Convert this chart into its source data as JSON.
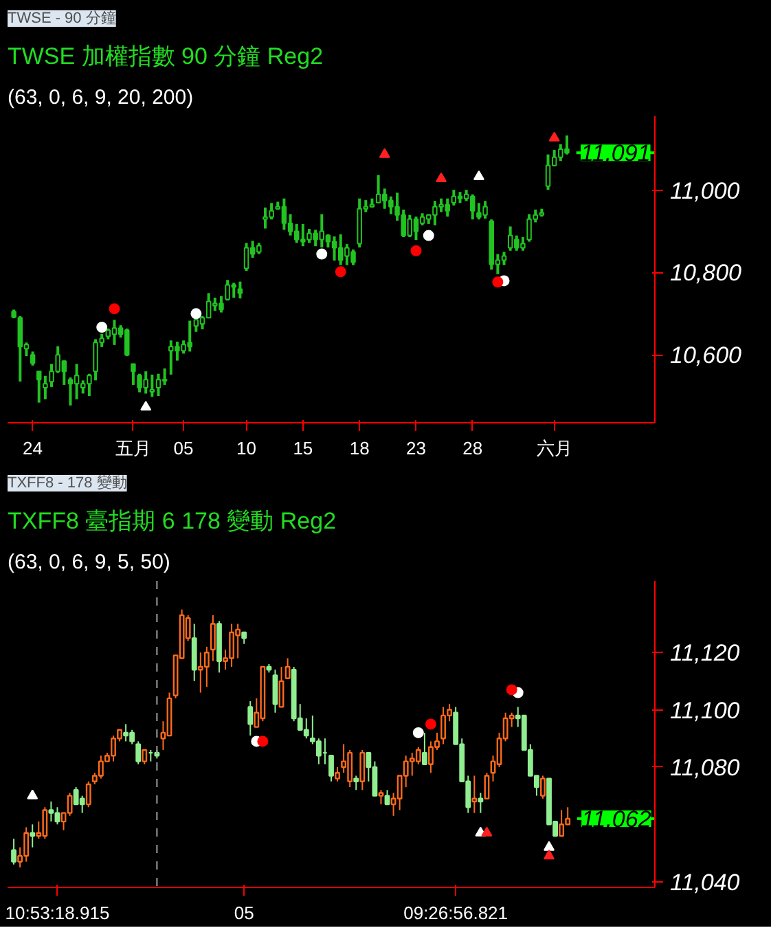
{
  "chart_data": [
    {
      "type": "candlestick",
      "title": "TWSE  加權指數  90 分鐘  Reg2",
      "subtitle": "(63,  0,  6,  9,  20,  200)",
      "annotations": [
        "TWSE - 90 分鐘"
      ],
      "color": "#22c322",
      "categories": [
        null,
        null,
        null,
        "24",
        null,
        null,
        null,
        null,
        null,
        null,
        null,
        null,
        null,
        null,
        null,
        null,
        null,
        null,
        null,
        "五月",
        null,
        null,
        null,
        null,
        null,
        null,
        null,
        "05",
        null,
        null,
        null,
        null,
        null,
        null,
        null,
        null,
        null,
        "10",
        null,
        null,
        null,
        null,
        null,
        null,
        null,
        null,
        "15",
        null,
        null,
        null,
        null,
        null,
        null,
        null,
        null,
        "18",
        null,
        null,
        null,
        null,
        null,
        null,
        null,
        null,
        "23",
        null,
        null,
        null,
        null,
        null,
        null,
        null,
        null,
        "28",
        null,
        null,
        null,
        null,
        null,
        null,
        null,
        null,
        null,
        null,
        null,
        null,
        "六月",
        null,
        null
      ],
      "ohlc": [
        [
          10705,
          10710,
          10689,
          10692
        ],
        [
          10690,
          10694,
          10535,
          10620
        ],
        [
          10615,
          10630,
          10597,
          10625
        ],
        [
          10600,
          10608,
          10574,
          10580
        ],
        [
          10560,
          10560,
          10484,
          10540
        ],
        [
          10520,
          10549,
          10492,
          10530
        ],
        [
          10535,
          10578,
          10522,
          10560
        ],
        [
          10560,
          10621,
          10556,
          10600
        ],
        [
          10585,
          10586,
          10527,
          10560
        ],
        [
          10540,
          10545,
          10477,
          10530
        ],
        [
          10530,
          10578,
          10492,
          10550
        ],
        [
          10520,
          10538,
          10506,
          10530
        ],
        [
          10530,
          10554,
          10500,
          10550
        ],
        [
          10560,
          10638,
          10538,
          10630
        ],
        [
          10630,
          10651,
          10619,
          10640
        ],
        [
          10645,
          10664,
          10638,
          10660
        ],
        [
          10650,
          10685,
          10624,
          10665
        ],
        [
          10665,
          10672,
          10642,
          10650
        ],
        [
          10660,
          10664,
          10597,
          10600
        ],
        [
          10578,
          10578,
          10527,
          10560
        ],
        [
          10550,
          10554,
          10509,
          10520
        ],
        [
          10520,
          10560,
          10506,
          10540
        ],
        [
          10510,
          10552,
          10498,
          10515
        ],
        [
          10520,
          10554,
          10500,
          10540
        ],
        [
          10540,
          10567,
          10527,
          10537
        ],
        [
          10610,
          10635,
          10552,
          10620
        ],
        [
          10620,
          10632,
          10586,
          10610
        ],
        [
          10610,
          10635,
          10603,
          10625
        ],
        [
          10630,
          10683,
          10608,
          10620
        ],
        [
          10670,
          10689,
          10656,
          10685
        ],
        [
          10675,
          10694,
          10662,
          10690
        ],
        [
          10690,
          10750,
          10689,
          10730
        ],
        [
          10720,
          10739,
          10707,
          10725
        ],
        [
          10725,
          10743,
          10703,
          10710
        ],
        [
          10735,
          10782,
          10732,
          10770
        ],
        [
          10770,
          10775,
          10739,
          10765
        ],
        [
          10760,
          10778,
          10737,
          10750
        ],
        [
          10810,
          10872,
          10804,
          10860
        ],
        [
          10860,
          10877,
          10836,
          10845
        ],
        [
          10850,
          10872,
          10845,
          10865
        ],
        [
          10930,
          10958,
          10907,
          10935
        ],
        [
          10935,
          10969,
          10929,
          10950
        ],
        [
          10955,
          10972,
          10953,
          10960
        ],
        [
          10960,
          10980,
          10904,
          10920
        ],
        [
          10920,
          10942,
          10890,
          10900
        ],
        [
          10900,
          10918,
          10872,
          10880
        ],
        [
          10880,
          10918,
          10864,
          10875
        ],
        [
          10880,
          10906,
          10872,
          10895
        ],
        [
          10895,
          10904,
          10864,
          10880
        ],
        [
          10880,
          10942,
          10861,
          10900
        ],
        [
          10890,
          10893,
          10861,
          10875
        ],
        [
          10875,
          10888,
          10829,
          10860
        ],
        [
          10860,
          10893,
          10818,
          10830
        ],
        [
          10840,
          10869,
          10818,
          10860
        ],
        [
          10850,
          10856,
          10818,
          10825
        ],
        [
          10870,
          10980,
          10861,
          10955
        ],
        [
          10955,
          10976,
          10947,
          10960
        ],
        [
          10960,
          10980,
          10958,
          10965
        ],
        [
          10970,
          11037,
          10969,
          10990
        ],
        [
          10990,
          11004,
          10955,
          10975
        ],
        [
          10975,
          10985,
          10942,
          10960
        ],
        [
          10960,
          10994,
          10926,
          10940
        ],
        [
          10940,
          10953,
          10886,
          10890
        ],
        [
          10890,
          10940,
          10886,
          10930
        ],
        [
          10930,
          10936,
          10879,
          10900
        ],
        [
          10920,
          10944,
          10915,
          10935
        ],
        [
          10930,
          10942,
          10918,
          10940
        ],
        [
          10940,
          10974,
          10915,
          10960
        ],
        [
          10960,
          10980,
          10947,
          10965
        ],
        [
          10965,
          10980,
          10936,
          10950
        ],
        [
          10970,
          11001,
          10963,
          10985
        ],
        [
          10985,
          10996,
          10969,
          10980
        ],
        [
          10980,
          11001,
          10974,
          10990
        ],
        [
          10985,
          10990,
          10929,
          10950
        ],
        [
          10945,
          10969,
          10929,
          10935
        ],
        [
          10940,
          10974,
          10931,
          10960
        ],
        [
          10925,
          10929,
          10807,
          10820
        ],
        [
          10820,
          10845,
          10796,
          10830
        ],
        [
          10830,
          10850,
          10818,
          10840
        ],
        [
          10860,
          10912,
          10853,
          10890
        ],
        [
          10880,
          10890,
          10853,
          10860
        ],
        [
          10860,
          10886,
          10853,
          10870
        ],
        [
          10880,
          10942,
          10875,
          10930
        ],
        [
          10930,
          10953,
          10922,
          10940
        ],
        [
          10940,
          10955,
          10936,
          10945
        ],
        [
          11010,
          11087,
          11001,
          11060
        ],
        [
          11060,
          11098,
          11058,
          11080
        ],
        [
          11080,
          11112,
          11071,
          11100
        ],
        [
          11100,
          11133,
          11087,
          11091
        ]
      ],
      "series": [
        {
          "type": "scatter",
          "color": "#ffffff",
          "marker": "circle",
          "values": [
            null,
            null,
            null,
            null,
            null,
            null,
            null,
            null,
            null,
            null,
            null,
            null,
            null,
            null,
            10667,
            null,
            null,
            null,
            null,
            null,
            null,
            null,
            null,
            null,
            null,
            null,
            null,
            null,
            null,
            10700,
            null,
            null,
            null,
            null,
            null,
            null,
            null,
            null,
            null,
            null,
            null,
            null,
            null,
            null,
            null,
            null,
            null,
            null,
            null,
            10845,
            null,
            null,
            null,
            null,
            null,
            null,
            null,
            null,
            null,
            null,
            null,
            null,
            null,
            null,
            null,
            null,
            10890,
            null,
            null,
            null,
            null,
            null,
            null,
            null,
            null,
            null,
            null,
            null,
            10780,
            null,
            null,
            null,
            null,
            null,
            null,
            null,
            null,
            null,
            null
          ]
        },
        {
          "type": "scatter",
          "color": "#ff0000",
          "marker": "circle",
          "values": [
            null,
            null,
            null,
            null,
            null,
            null,
            null,
            null,
            null,
            null,
            null,
            null,
            null,
            null,
            null,
            null,
            10712,
            null,
            null,
            null,
            null,
            null,
            null,
            null,
            null,
            null,
            null,
            null,
            null,
            null,
            null,
            null,
            null,
            null,
            null,
            null,
            null,
            null,
            null,
            null,
            null,
            null,
            null,
            null,
            null,
            null,
            null,
            null,
            null,
            null,
            null,
            null,
            10802,
            null,
            null,
            null,
            null,
            null,
            null,
            null,
            null,
            null,
            null,
            null,
            10853,
            null,
            null,
            null,
            null,
            null,
            null,
            null,
            null,
            null,
            null,
            null,
            null,
            10777,
            null,
            null,
            null,
            null,
            null,
            null,
            null,
            null,
            null,
            null,
            null
          ]
        },
        {
          "type": "scatter",
          "color": "#ff2020",
          "marker": "triangle",
          "values": [
            null,
            null,
            null,
            null,
            null,
            null,
            null,
            null,
            null,
            null,
            null,
            null,
            null,
            null,
            null,
            null,
            null,
            null,
            null,
            null,
            null,
            null,
            null,
            null,
            null,
            null,
            null,
            null,
            null,
            null,
            null,
            null,
            null,
            null,
            null,
            null,
            null,
            null,
            null,
            null,
            null,
            null,
            null,
            null,
            null,
            null,
            null,
            null,
            null,
            null,
            null,
            null,
            null,
            null,
            null,
            null,
            null,
            null,
            null,
            11087,
            null,
            null,
            null,
            null,
            null,
            null,
            null,
            null,
            11028,
            null,
            null,
            null,
            null,
            null,
            null,
            null,
            null,
            null,
            null,
            null,
            null,
            null,
            null,
            null,
            null,
            null,
            11127,
            null,
            null
          ]
        },
        {
          "type": "scatter",
          "color": "#ffffff",
          "marker": "triangle",
          "values": [
            null,
            null,
            null,
            null,
            null,
            null,
            null,
            null,
            null,
            null,
            null,
            null,
            null,
            null,
            null,
            null,
            null,
            null,
            null,
            null,
            null,
            null,
            null,
            null,
            null,
            null,
            null,
            null,
            null,
            null,
            null,
            null,
            null,
            null,
            null,
            null,
            null,
            null,
            null,
            null,
            null,
            null,
            null,
            null,
            null,
            null,
            null,
            null,
            null,
            null,
            null,
            null,
            null,
            null,
            null,
            null,
            null,
            null,
            null,
            null,
            null,
            null,
            null,
            null,
            null,
            null,
            null,
            null,
            null,
            null,
            null,
            null,
            null,
            null,
            11033,
            null,
            null,
            null,
            null,
            null,
            null,
            null,
            null,
            null,
            null,
            null,
            null,
            null,
            null
          ]
        },
        {
          "type": "scatter",
          "color": "#ffffff",
          "marker": "triangle",
          "values": [
            null,
            null,
            null,
            null,
            null,
            null,
            null,
            null,
            null,
            null,
            null,
            null,
            null,
            null,
            null,
            null,
            null,
            null,
            null,
            null,
            null,
            10473,
            null,
            null,
            null,
            null,
            null,
            null,
            null,
            null,
            null,
            null,
            null,
            null,
            null,
            null,
            null,
            null,
            null,
            null,
            null,
            null,
            null,
            null,
            null,
            null,
            null,
            null,
            null,
            null,
            null,
            null,
            null,
            null,
            null,
            null,
            null,
            null,
            null,
            null,
            null,
            null,
            null,
            null,
            null,
            null,
            null,
            null,
            null,
            null,
            null,
            null,
            null,
            null,
            null,
            null,
            null,
            null,
            null,
            null,
            null,
            null,
            null,
            null,
            null,
            null,
            null,
            null,
            null
          ]
        }
      ],
      "ylim": [
        10435,
        11180
      ],
      "yticks": [
        {
          "value": 10600,
          "label": "10,600"
        },
        {
          "value": 10800,
          "label": "10,800"
        },
        {
          "value": 11000,
          "label": "11,000"
        }
      ],
      "ref_lines": [
        {
          "axis": "y",
          "value": 11091,
          "label": "11,091",
          "color": "#00ff00"
        }
      ]
    },
    {
      "type": "candlestick",
      "title": "TXFF8  臺指期 6  178 變動  Reg2",
      "subtitle": "(63,  0,  6,  9,  5,  50)",
      "annotations": [
        "TXFF8 - 178 變動"
      ],
      "colors": [
        "#90ee90",
        "#ff6a1a",
        "#ff6a1a",
        "#90ee90",
        "#ff6a1a",
        "#ff6a1a",
        "#90ee90",
        "#90ee90",
        "#ff6a1a",
        "#ff6a1a",
        "#90ee90",
        "#90ee90",
        "#ff6a1a",
        "#ff6a1a",
        "#ff6a1a",
        "#ff6a1a",
        "#ff6a1a",
        "#ff6a1a",
        "#90ee90",
        "#90ee90",
        "#90ee90",
        "#ff6a1a",
        "#90ee90",
        "#90ee90",
        "#ff6a1a",
        "#ff6a1a",
        "#ff6a1a",
        "#ff6a1a",
        "#ff6a1a",
        "#90ee90",
        "#ff6a1a",
        "#ff6a1a",
        "#ff6a1a",
        "#90ee90",
        "#ff6a1a",
        "#ff6a1a",
        "#ff6a1a",
        "#90ee90",
        "#90ee90",
        "#ff6a1a",
        "#ff6a1a",
        "#90ee90",
        "#90ee90",
        "#ff6a1a",
        "#ff6a1a",
        "#90ee90",
        "#90ee90",
        "#90ee90",
        "#90ee90",
        "#90ee90",
        "#90ee90",
        "#90ee90",
        "#ff6a1a",
        "#ff6a1a",
        "#ff6a1a",
        "#90ee90",
        "#ff6a1a",
        "#90ee90",
        "#90ee90",
        "#ff6a1a",
        "#90ee90",
        "#ff6a1a",
        "#ff6a1a",
        "#ff6a1a",
        "#ff6a1a",
        "#ff6a1a",
        "#90ee90",
        "#ff6a1a",
        "#ff6a1a",
        "#ff6a1a",
        "#ff6a1a",
        "#90ee90",
        "#90ee90",
        "#90ee90",
        "#ff6a1a",
        "#90ee90",
        "#ff6a1a",
        "#ff6a1a",
        "#ff6a1a",
        "#ff6a1a",
        "#ff6a1a",
        "#90ee90",
        "#90ee90",
        "#90ee90",
        "#90ee90",
        "#ff6a1a",
        "#90ee90",
        "#90ee90",
        "#ff6a1a",
        "#ff6a1a"
      ],
      "categories": [
        null,
        null,
        null,
        null,
        null,
        null,
        null,
        "10:53:18.915",
        null,
        null,
        null,
        null,
        null,
        null,
        null,
        null,
        null,
        null,
        null,
        null,
        null,
        null,
        null,
        null,
        null,
        null,
        null,
        null,
        null,
        null,
        null,
        null,
        null,
        null,
        null,
        null,
        null,
        "05",
        null,
        null,
        null,
        null,
        null,
        null,
        null,
        null,
        null,
        null,
        null,
        null,
        null,
        null,
        null,
        null,
        null,
        null,
        null,
        null,
        null,
        null,
        null,
        null,
        null,
        null,
        null,
        null,
        null,
        null,
        null,
        null,
        null,
        "09:26:56.821",
        null,
        null,
        null,
        null,
        null,
        null,
        null,
        null,
        null,
        null,
        null,
        null,
        null,
        null,
        null,
        null,
        null,
        null
      ],
      "ohlc": [
        [
          11051,
          11055,
          11046,
          11047
        ],
        [
          11047,
          11052,
          11045,
          11049
        ],
        [
          11049,
          11059,
          11047,
          11057
        ],
        [
          11057,
          11060,
          11052,
          11056
        ],
        [
          11056,
          11061,
          11055,
          11057
        ],
        [
          11056,
          11066,
          11055,
          11065
        ],
        [
          11065,
          11068,
          11061,
          11064
        ],
        [
          11064,
          11066,
          11060,
          11061
        ],
        [
          11061,
          11064,
          11058,
          11064
        ],
        [
          11064,
          11071,
          11063,
          11070
        ],
        [
          11072,
          11073,
          11067,
          11067
        ],
        [
          11069,
          11070,
          11064,
          11067
        ],
        [
          11067,
          11075,
          11066,
          11074
        ],
        [
          11075,
          11078,
          11074,
          11077
        ],
        [
          11077,
          11084,
          11076,
          11082
        ],
        [
          11082,
          11085,
          11082,
          11084
        ],
        [
          11084,
          11091,
          11082,
          11090
        ],
        [
          11090,
          11093,
          11089,
          11093
        ],
        [
          11092,
          11095,
          11089,
          11091
        ],
        [
          11092,
          11093,
          11088,
          11089
        ],
        [
          11088,
          11089,
          11081,
          11082
        ],
        [
          11082,
          11086,
          11081,
          11086
        ],
        [
          11085,
          11086,
          11082,
          11085
        ],
        [
          11085,
          11086,
          11083,
          11084
        ],
        [
          11090,
          11096,
          11086,
          11092
        ],
        [
          11091,
          11106,
          11091,
          11104
        ],
        [
          11105,
          11119,
          11104,
          11119
        ],
        [
          11118,
          11135,
          11118,
          11133
        ],
        [
          11125,
          11133,
          11124,
          11132
        ],
        [
          11125,
          11130,
          11110,
          11114
        ],
        [
          11114,
          11120,
          11106,
          11115
        ],
        [
          11115,
          11122,
          11108,
          11120
        ],
        [
          11121,
          11133,
          11117,
          11130
        ],
        [
          11130,
          11131,
          11113,
          11117
        ],
        [
          11117,
          11121,
          11114,
          11118
        ],
        [
          11118,
          11130,
          11115,
          11127
        ],
        [
          11126,
          11130,
          11118,
          11128
        ],
        [
          11127,
          11127,
          11123,
          11125
        ],
        [
          11101,
          11103,
          11091,
          11095
        ],
        [
          11094,
          11104,
          11094,
          11099
        ],
        [
          11097,
          11115,
          11096,
          11115
        ],
        [
          11115,
          11116,
          11113,
          11114
        ],
        [
          11112,
          11114,
          11099,
          11102
        ],
        [
          11101,
          11115,
          11101,
          11110
        ],
        [
          11111,
          11118,
          11111,
          11115
        ],
        [
          11114,
          11115,
          11096,
          11097
        ],
        [
          11097,
          11102,
          11093,
          11093
        ],
        [
          11093,
          11097,
          11090,
          11091
        ],
        [
          11090,
          11098,
          11088,
          11089
        ],
        [
          11089,
          11090,
          11081,
          11084
        ],
        [
          11085,
          11090,
          11081,
          11085
        ],
        [
          11084,
          11084,
          11075,
          11077
        ],
        [
          11076,
          11080,
          11075,
          11078
        ],
        [
          11080,
          11088,
          11078,
          11082
        ],
        [
          11075,
          11086,
          11073,
          11085
        ],
        [
          11076,
          11077,
          11072,
          11075
        ],
        [
          11075,
          11086,
          11072,
          11085
        ],
        [
          11085,
          11085,
          11075,
          11080
        ],
        [
          11080,
          11082,
          11070,
          11070
        ],
        [
          11070,
          11072,
          11067,
          11071
        ],
        [
          11070,
          11072,
          11067,
          11067
        ],
        [
          11067,
          11071,
          11063,
          11069
        ],
        [
          11069,
          11077,
          11065,
          11077
        ],
        [
          11077,
          11084,
          11073,
          11082
        ],
        [
          11082,
          11085,
          11077,
          11083
        ],
        [
          11082,
          11087,
          11081,
          11086
        ],
        [
          11085,
          11092,
          11081,
          11081
        ],
        [
          11081,
          11089,
          11078,
          11087
        ],
        [
          11087,
          11092,
          11086,
          11089
        ],
        [
          11090,
          11101,
          11088,
          11098
        ],
        [
          11098,
          11102,
          11096,
          11100
        ],
        [
          11099,
          11101,
          11088,
          11088
        ],
        [
          11088,
          11090,
          11075,
          11075
        ],
        [
          11075,
          11077,
          11064,
          11066
        ],
        [
          11068,
          11077,
          11064,
          11069
        ],
        [
          11069,
          11071,
          11064,
          11068
        ],
        [
          11069,
          11078,
          11069,
          11077
        ],
        [
          11078,
          11084,
          11075,
          11082
        ],
        [
          11081,
          11092,
          11080,
          11090
        ],
        [
          11090,
          11099,
          11089,
          11097
        ],
        [
          11097,
          11099,
          11094,
          11098
        ],
        [
          11098,
          11101,
          11094,
          11097
        ],
        [
          11098,
          11098,
          11086,
          11086
        ],
        [
          11086,
          11088,
          11077,
          11077
        ],
        [
          11077,
          11077,
          11070,
          11073
        ],
        [
          11070,
          11077,
          11069,
          11076
        ],
        [
          11076,
          11076,
          11060,
          11060
        ],
        [
          11061,
          11061,
          11056,
          11056
        ],
        [
          11056,
          11065,
          11056,
          11060
        ],
        [
          11060,
          11066,
          11060,
          11062
        ]
      ],
      "series": [
        {
          "type": "scatter",
          "color": "#ffffff",
          "marker": "circle",
          "values": [
            null,
            null,
            null,
            null,
            null,
            null,
            null,
            null,
            null,
            null,
            null,
            null,
            null,
            null,
            null,
            null,
            null,
            null,
            null,
            null,
            null,
            null,
            null,
            null,
            null,
            null,
            null,
            null,
            null,
            null,
            null,
            null,
            null,
            null,
            null,
            null,
            null,
            null,
            null,
            11089,
            null,
            null,
            null,
            null,
            null,
            null,
            null,
            null,
            null,
            null,
            null,
            null,
            null,
            null,
            null,
            null,
            null,
            null,
            null,
            null,
            null,
            null,
            null,
            null,
            null,
            11092,
            null,
            null,
            null,
            null,
            null,
            null,
            null,
            null,
            null,
            null,
            null,
            null,
            null,
            null,
            null,
            11106,
            null,
            null,
            null,
            null,
            null,
            null,
            null,
            null
          ]
        },
        {
          "type": "scatter",
          "color": "#ff0000",
          "marker": "circle",
          "values": [
            null,
            null,
            null,
            null,
            null,
            null,
            null,
            null,
            null,
            null,
            null,
            null,
            null,
            null,
            null,
            null,
            null,
            null,
            null,
            null,
            null,
            null,
            null,
            null,
            null,
            null,
            null,
            null,
            null,
            null,
            null,
            null,
            null,
            null,
            null,
            null,
            null,
            null,
            null,
            null,
            11089,
            null,
            null,
            null,
            null,
            null,
            null,
            null,
            null,
            null,
            null,
            null,
            null,
            null,
            null,
            null,
            null,
            null,
            null,
            null,
            null,
            null,
            null,
            null,
            null,
            null,
            null,
            11095,
            null,
            null,
            null,
            null,
            null,
            null,
            null,
            null,
            null,
            null,
            null,
            null,
            11107,
            null,
            null,
            null,
            null,
            null,
            null,
            null,
            null,
            null
          ]
        },
        {
          "type": "scatter",
          "color": "#ffffff",
          "marker": "triangle",
          "values": [
            null,
            null,
            null,
            11070,
            null,
            null,
            null,
            null,
            null,
            null,
            null,
            null,
            null,
            null,
            null,
            null,
            null,
            null,
            null,
            null,
            null,
            null,
            null,
            null,
            null,
            null,
            null,
            null,
            null,
            null,
            null,
            null,
            null,
            null,
            null,
            null,
            null,
            null,
            null,
            null,
            null,
            null,
            null,
            null,
            null,
            null,
            null,
            null,
            null,
            null,
            null,
            null,
            null,
            null,
            null,
            null,
            null,
            null,
            null,
            null,
            null,
            null,
            null,
            null,
            null,
            null,
            null,
            null,
            null,
            null,
            null,
            null,
            null,
            null,
            null,
            null,
            null,
            null,
            null,
            null,
            null,
            null,
            null,
            null,
            null,
            null,
            null,
            null,
            null,
            null
          ]
        },
        {
          "type": "scatter",
          "color": "#ffffff",
          "marker": "triangle",
          "values": [
            null,
            null,
            null,
            null,
            null,
            null,
            null,
            null,
            null,
            null,
            null,
            null,
            null,
            null,
            null,
            null,
            null,
            null,
            null,
            null,
            null,
            null,
            null,
            null,
            null,
            null,
            null,
            null,
            null,
            null,
            null,
            null,
            null,
            null,
            null,
            null,
            null,
            null,
            null,
            null,
            null,
            null,
            null,
            null,
            null,
            null,
            null,
            null,
            null,
            null,
            null,
            null,
            null,
            null,
            null,
            null,
            null,
            null,
            null,
            null,
            null,
            null,
            null,
            null,
            null,
            null,
            null,
            null,
            null,
            null,
            null,
            null,
            null,
            null,
            null,
            11057,
            null,
            null,
            null,
            null,
            null,
            null,
            null,
            null,
            null,
            null,
            11052,
            null,
            null,
            null
          ]
        },
        {
          "type": "scatter",
          "color": "#ff2020",
          "marker": "triangle",
          "values": [
            null,
            null,
            null,
            null,
            null,
            null,
            null,
            null,
            null,
            null,
            null,
            null,
            null,
            null,
            null,
            null,
            null,
            null,
            null,
            null,
            null,
            null,
            null,
            null,
            null,
            null,
            null,
            null,
            null,
            null,
            null,
            null,
            null,
            null,
            null,
            null,
            null,
            null,
            null,
            null,
            null,
            null,
            null,
            null,
            null,
            null,
            null,
            null,
            null,
            null,
            null,
            null,
            null,
            null,
            null,
            null,
            null,
            null,
            null,
            null,
            null,
            null,
            null,
            null,
            null,
            null,
            null,
            null,
            null,
            null,
            null,
            null,
            null,
            null,
            null,
            null,
            11057,
            null,
            null,
            null,
            null,
            null,
            null,
            null,
            null,
            null,
            11049,
            null,
            null,
            null
          ]
        }
      ],
      "ylim": [
        11038,
        11145
      ],
      "yticks": [
        {
          "value": 11040,
          "label": "11,040"
        },
        {
          "value": 11080,
          "label": "11,080"
        },
        {
          "value": 11100,
          "label": "11,100"
        },
        {
          "value": 11120,
          "label": "11,120"
        }
      ],
      "ref_lines": [
        {
          "axis": "y",
          "value": 11062,
          "label": "11,062",
          "color": "#00ff00"
        }
      ]
    }
  ]
}
